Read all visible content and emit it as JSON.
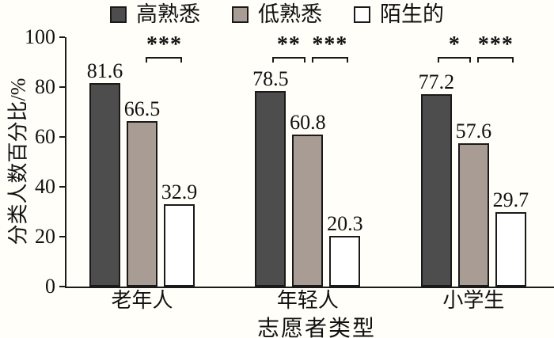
{
  "chart_data": {
    "type": "bar",
    "title": "",
    "xlabel": "志愿者类型",
    "ylabel": "分类人数百分比/%",
    "ylim": [
      0,
      100
    ],
    "yticks": [
      0,
      20,
      40,
      60,
      80,
      100
    ],
    "grid": false,
    "legend_position": "top",
    "categories": [
      "老年人",
      "年轻人",
      "小学生"
    ],
    "series": [
      {
        "name": "高熟悉",
        "color": "#4d4d4d",
        "values": [
          81.6,
          78.5,
          77.2
        ]
      },
      {
        "name": "低熟悉",
        "color": "#a89c95",
        "values": [
          66.5,
          60.8,
          57.6
        ]
      },
      {
        "name": "陌生的",
        "color": "#ffffff",
        "values": [
          32.9,
          20.3,
          29.7
        ]
      }
    ],
    "significance": [
      {
        "group": 0,
        "pair": [
          1,
          2
        ],
        "label": "***"
      },
      {
        "group": 1,
        "pair": [
          0,
          1
        ],
        "label": "**"
      },
      {
        "group": 1,
        "pair": [
          1,
          2
        ],
        "label": "***"
      },
      {
        "group": 2,
        "pair": [
          0,
          1
        ],
        "label": "*"
      },
      {
        "group": 2,
        "pair": [
          1,
          2
        ],
        "label": "***"
      }
    ]
  },
  "colors": {
    "axis": "#1a1a1a",
    "background": "#fffef8",
    "text": "#111111"
  }
}
